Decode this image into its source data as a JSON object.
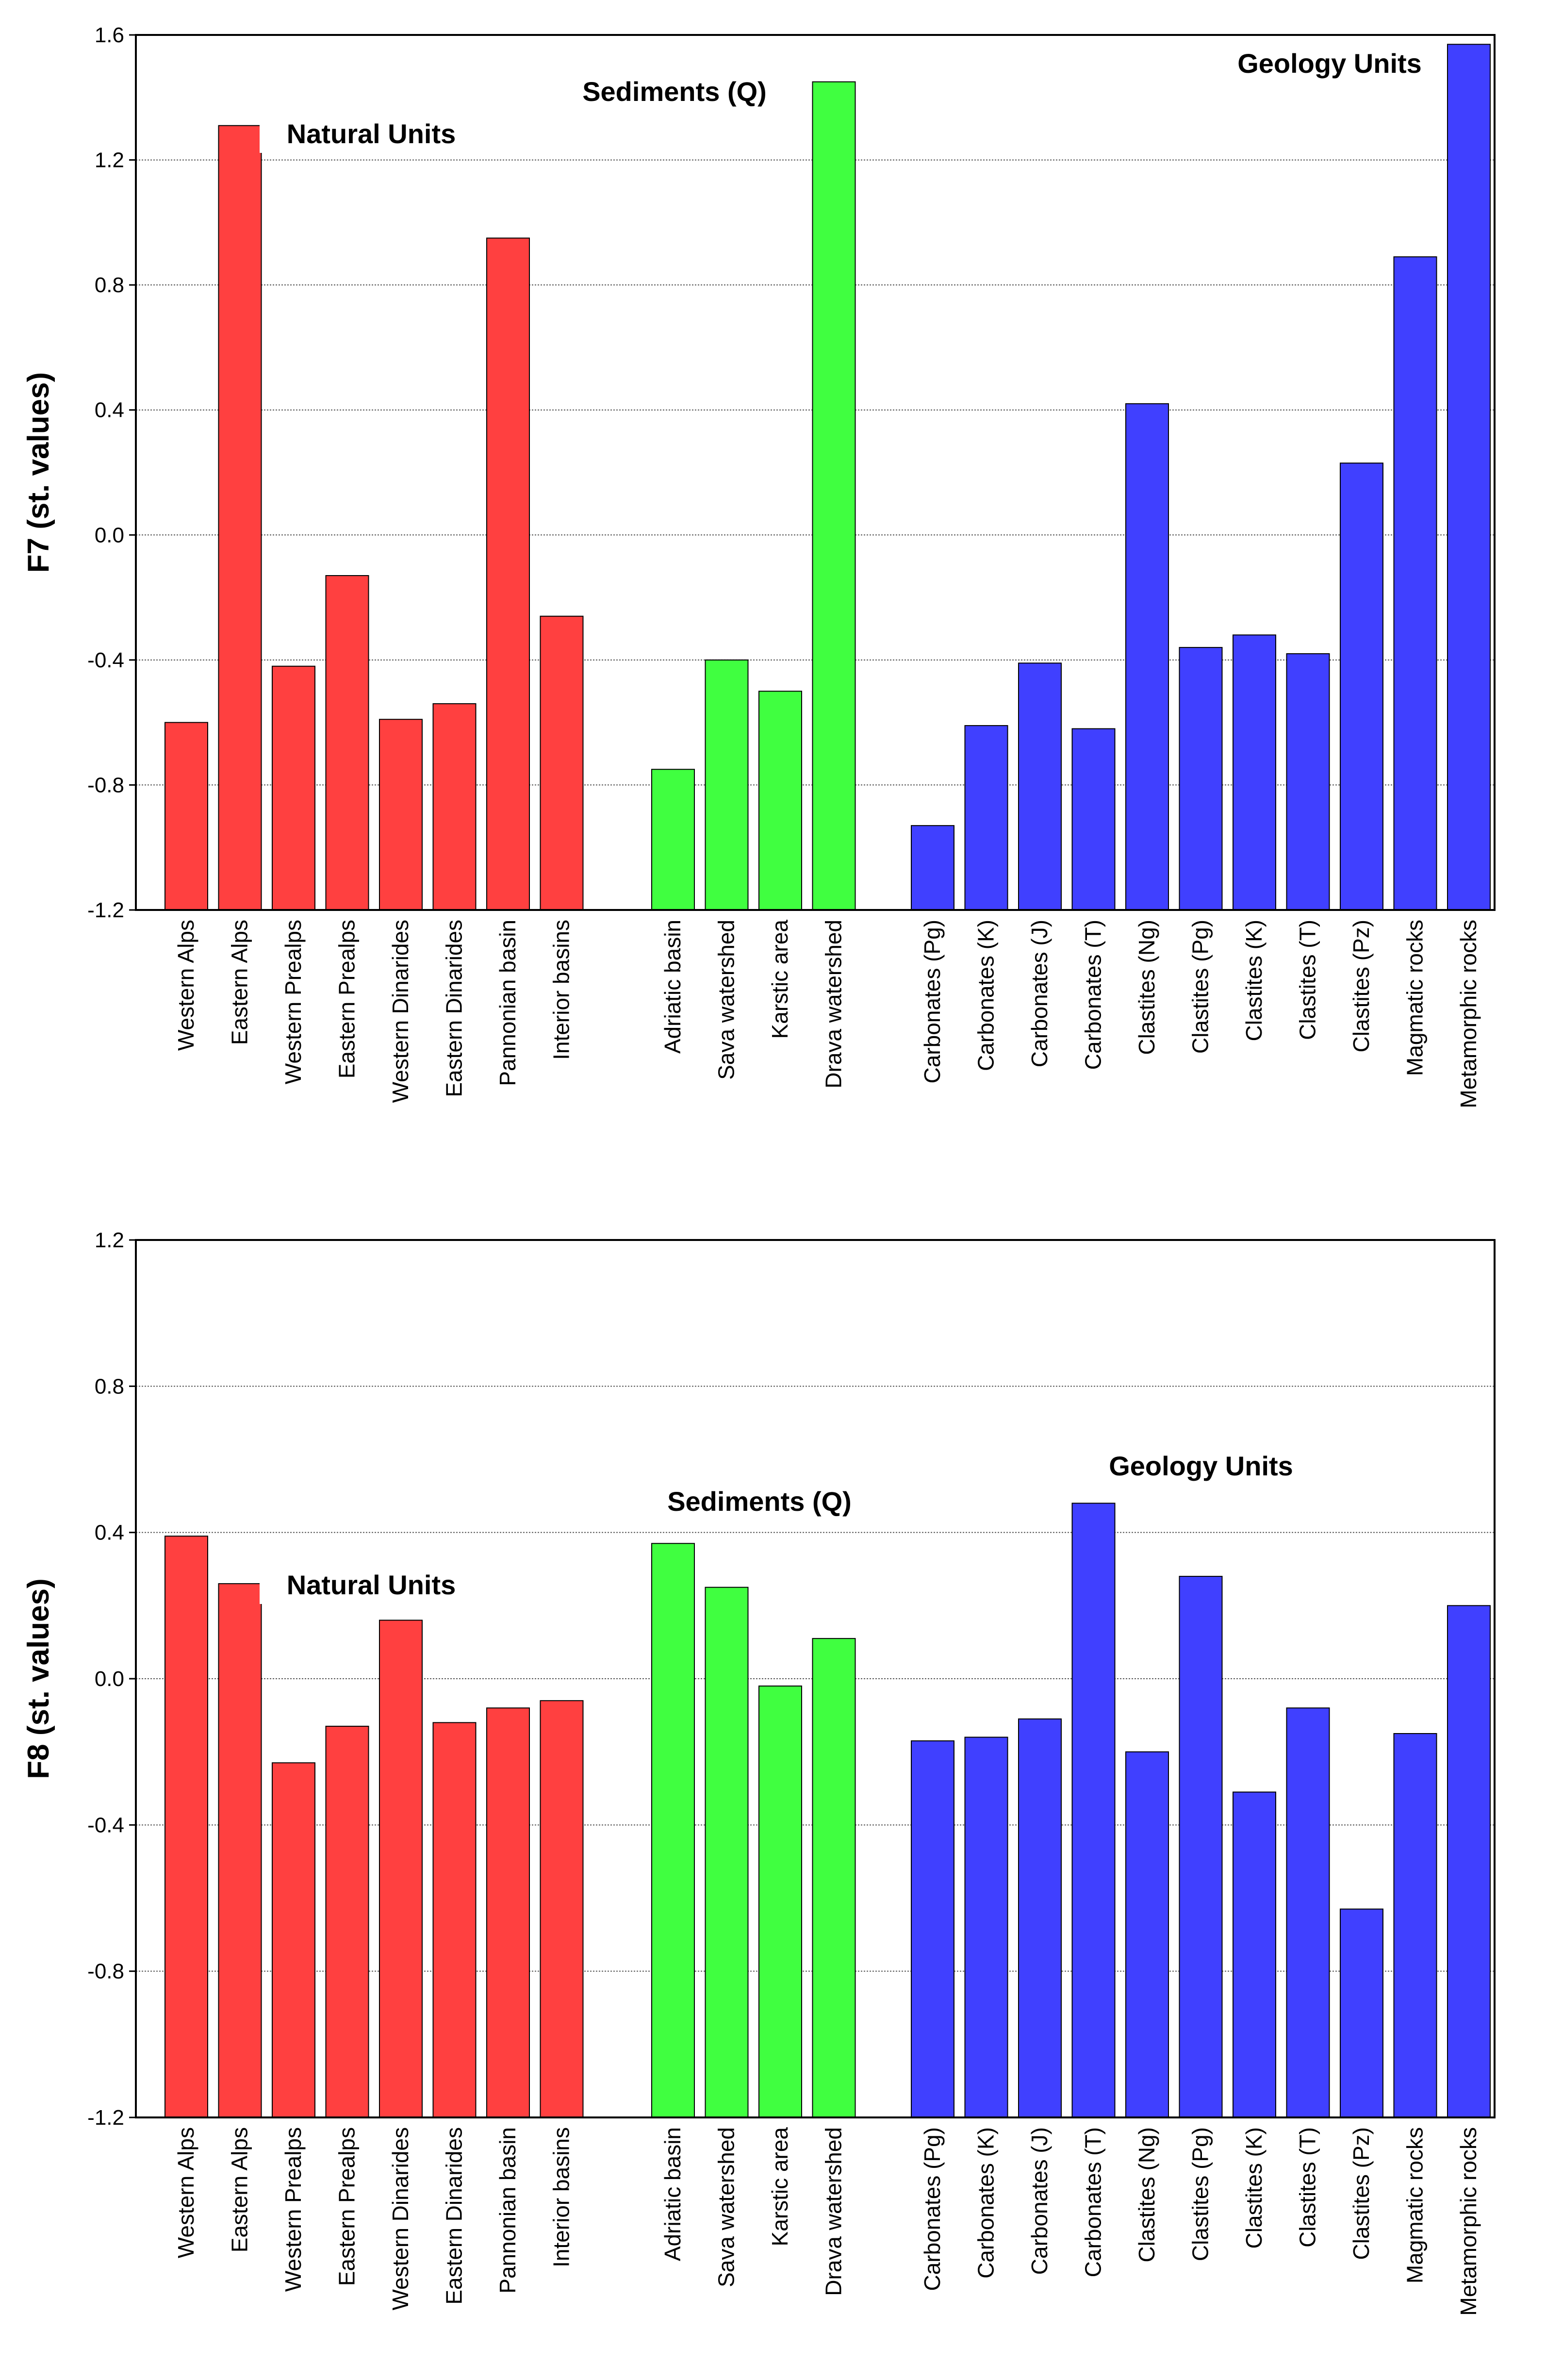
{
  "colors": {
    "natural": "#ff4040",
    "sediments": "#40ff40",
    "geology": "#4040ff",
    "frame": "#000000",
    "grid": "#555555"
  },
  "chart_data": [
    {
      "type": "bar",
      "ylabel": "F7 (st. values)",
      "ylim": [
        -1.2,
        1.6
      ],
      "yticks": [
        "1.6",
        "1.2",
        "0.8",
        "0.4",
        "0.0",
        "-0.4",
        "-0.8",
        "-1.2"
      ],
      "ytick_values": [
        1.6,
        1.2,
        0.8,
        0.4,
        0.0,
        -0.4,
        -0.8,
        -1.2
      ],
      "grid": true,
      "groups": [
        {
          "name": "Natural Units",
          "color_key": "natural",
          "categories": [
            "Western Alps",
            "Eastern Alps",
            "Western Prealps",
            "Eastern Prealps",
            "Western Dinarides",
            "Eastern Dinarides",
            "Pannonian basin",
            "Interior basins"
          ],
          "values": [
            -0.6,
            1.31,
            -0.42,
            -0.13,
            -0.59,
            -0.54,
            0.95,
            -0.26
          ]
        },
        {
          "name": "Sediments (Q)",
          "color_key": "sediments",
          "categories": [
            "Adriatic basin",
            "Sava watershed",
            "Karstic area",
            "Drava watershed"
          ],
          "values": [
            -0.75,
            -0.4,
            -0.5,
            1.45
          ]
        },
        {
          "name": "Geology Units",
          "color_key": "geology",
          "categories": [
            "Carbonates (Pg)",
            "Carbonates (K)",
            "Carbonates (J)",
            "Carbonates (T)",
            "Clastites (Ng)",
            "Clastites (Pg)",
            "Clastites (K)",
            "Clastites (T)",
            "Clastites (Pz)",
            "Magmatic rocks",
            "Metamorphic rocks"
          ],
          "values": [
            -0.93,
            -0.61,
            -0.41,
            -0.62,
            0.42,
            -0.36,
            -0.32,
            -0.38,
            0.23,
            0.89,
            1.57
          ]
        }
      ]
    },
    {
      "type": "bar",
      "ylabel": "F8 (st. values)",
      "ylim": [
        -1.2,
        1.2
      ],
      "yticks": [
        "1.2",
        "0.8",
        "0.4",
        "0.0",
        "-0.4",
        "-0.8",
        "-1.2"
      ],
      "ytick_values": [
        1.2,
        0.8,
        0.4,
        0.0,
        -0.4,
        -0.8,
        -1.2
      ],
      "grid": true,
      "groups": [
        {
          "name": "Natural Units",
          "color_key": "natural",
          "categories": [
            "Western Alps",
            "Eastern Alps",
            "Western Prealps",
            "Eastern Prealps",
            "Western Dinarides",
            "Eastern Dinarides",
            "Pannonian basin",
            "Interior basins"
          ],
          "values": [
            0.39,
            0.26,
            -0.23,
            -0.13,
            0.16,
            -0.12,
            -0.08,
            -0.06
          ]
        },
        {
          "name": "Sediments (Q)",
          "color_key": "sediments",
          "categories": [
            "Adriatic basin",
            "Sava watershed",
            "Karstic area",
            "Drava watershed"
          ],
          "values": [
            0.37,
            0.25,
            -0.02,
            0.11
          ]
        },
        {
          "name": "Geology Units",
          "color_key": "geology",
          "categories": [
            "Carbonates (Pg)",
            "Carbonates (K)",
            "Carbonates (J)",
            "Carbonates (T)",
            "Clastites (Ng)",
            "Clastites (Pg)",
            "Clastites (K)",
            "Clastites (T)",
            "Clastites (Pz)",
            "Magmatic rocks",
            "Metamorphic rocks"
          ],
          "values": [
            -0.17,
            -0.16,
            -0.11,
            0.48,
            -0.2,
            0.28,
            -0.31,
            -0.08,
            -0.63,
            -0.15,
            0.2
          ]
        }
      ]
    }
  ]
}
